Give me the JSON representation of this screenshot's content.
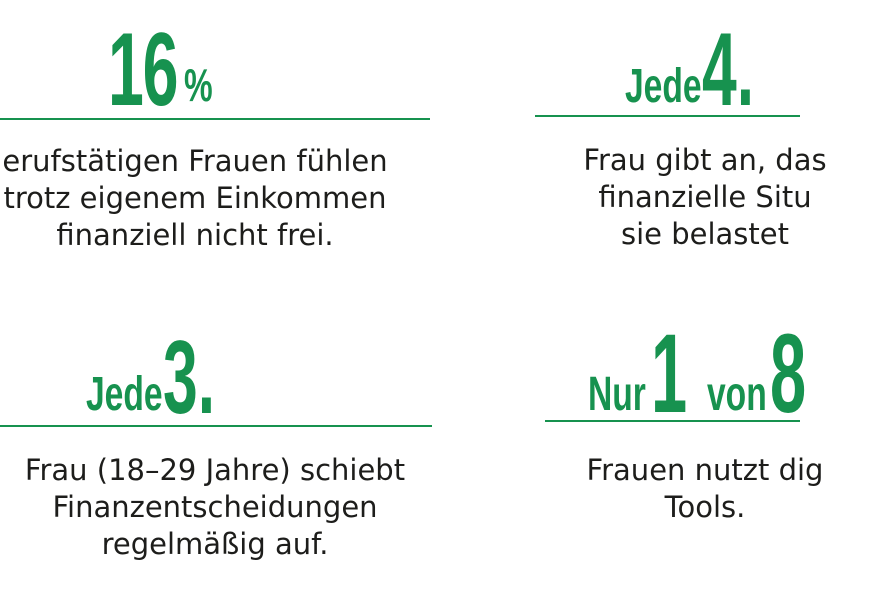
{
  "stats": [
    {
      "headline": {
        "number": "16",
        "suffix": "%"
      },
      "lines": [
        "erufstätigen Frauen fühlen",
        "trotz eigenem Einkommen",
        "finanziell nicht frei."
      ]
    },
    {
      "headline": {
        "prefix": "Jede",
        "number": "4."
      },
      "lines": [
        "Frau gibt an, das",
        "finanzielle Situ",
        "sie belastet"
      ]
    },
    {
      "headline": {
        "prefix": "Jede",
        "number": "3."
      },
      "lines": [
        "Frau (18–29 Jahre) schiebt",
        "Finanzentscheidungen",
        "regelmäßig auf."
      ]
    },
    {
      "headline": {
        "prefix": "Nur",
        "number": "1",
        "middle": "von",
        "number2": "8"
      },
      "lines": [
        "Frauen nutzt dig",
        "Tools."
      ]
    }
  ],
  "colors": {
    "accent": "#17924f",
    "text": "#1d1d1b",
    "background": "#ffffff"
  }
}
